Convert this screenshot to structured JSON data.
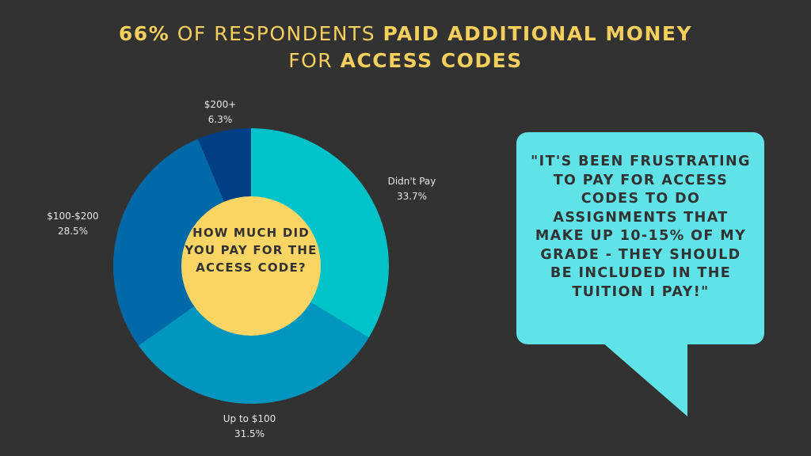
{
  "header": {
    "pct": "66%",
    "part1": " OF RESPONDENTS ",
    "part2": "PAID ADDITIONAL MONEY",
    "part3": "FOR ",
    "part4": "ACCESS CODES"
  },
  "chart_data": {
    "type": "pie",
    "style": "donut",
    "title": "66% OF RESPONDENTS PAID ADDITIONAL MONEY FOR ACCESS CODES",
    "center_label": "HOW MUCH DID YOU PAY FOR THE ACCESS CODE?",
    "slices": [
      {
        "label": "Didn't Pay",
        "value": 33.7,
        "display": "33.7%",
        "color": "#00c2c9"
      },
      {
        "label": "Up to $100",
        "value": 31.5,
        "display": "31.5%",
        "color": "#0096bf"
      },
      {
        "label": "$100-$200",
        "value": 28.5,
        "display": "28.5%",
        "color": "#006aa8"
      },
      {
        "label": "$200+",
        "value": 6.3,
        "display": "6.3%",
        "color": "#003f86"
      }
    ],
    "center_color": "#fbd564"
  },
  "quote": {
    "text": "\"IT'S BEEN FRUSTRATING TO PAY FOR ACCESS CODES TO DO ASSIGNMENTS THAT MAKE UP 10-15% OF MY GRADE - THEY SHOULD BE INCLUDED IN THE TUITION I PAY!\"",
    "color": "#5fe3e8"
  },
  "colors": {
    "background": "#333232",
    "accent": "#f5cf5b"
  }
}
